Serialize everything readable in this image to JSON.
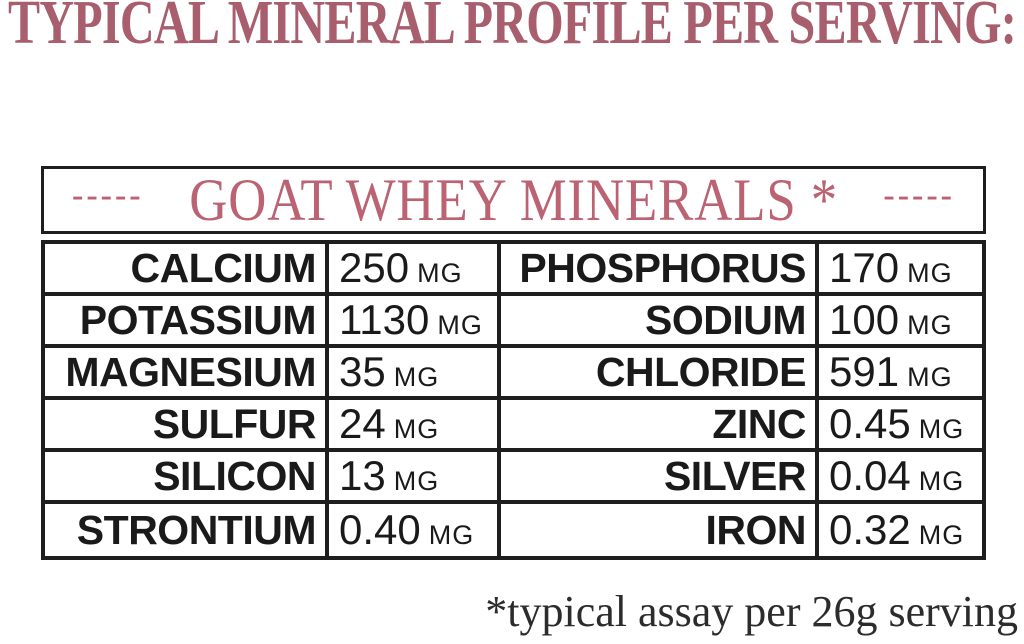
{
  "page": {
    "title": "TYPICAL MINERAL PROFILE PER SERVING:",
    "footnote": "*typical assay per 26g serving"
  },
  "table": {
    "header": {
      "dash_left": "-----",
      "title": "GOAT WHEY MINERALS *",
      "dash_right": "-----"
    },
    "rows": [
      {
        "left_name": "CALCIUM",
        "left_value": "250",
        "left_unit": "MG",
        "right_name": "PHOSPHORUS",
        "right_value": "170",
        "right_unit": "MG"
      },
      {
        "left_name": "POTASSIUM",
        "left_value": "1130",
        "left_unit": "MG",
        "right_name": "SODIUM",
        "right_value": "100",
        "right_unit": "MG"
      },
      {
        "left_name": "MAGNESIUM",
        "left_value": "35",
        "left_unit": "MG",
        "right_name": "CHLORIDE",
        "right_value": "591",
        "right_unit": "MG"
      },
      {
        "left_name": "SULFUR",
        "left_value": "24",
        "left_unit": "MG",
        "right_name": "ZINC",
        "right_value": "0.45",
        "right_unit": "MG"
      },
      {
        "left_name": "SILICON",
        "left_value": "13",
        "left_unit": "MG",
        "right_name": "SILVER",
        "right_value": "0.04",
        "right_unit": "MG"
      },
      {
        "left_name": "STRONTIUM",
        "left_value": "0.40",
        "left_unit": "MG",
        "right_name": "IRON",
        "right_value": "0.32",
        "right_unit": "MG"
      }
    ]
  },
  "colors": {
    "title_rose": "#a85e6c",
    "header_pink": "#bb6273",
    "table_text": "#1a1a1a",
    "border_black": "#1e1e1e",
    "footnote_gray": "#2c2c2c"
  }
}
